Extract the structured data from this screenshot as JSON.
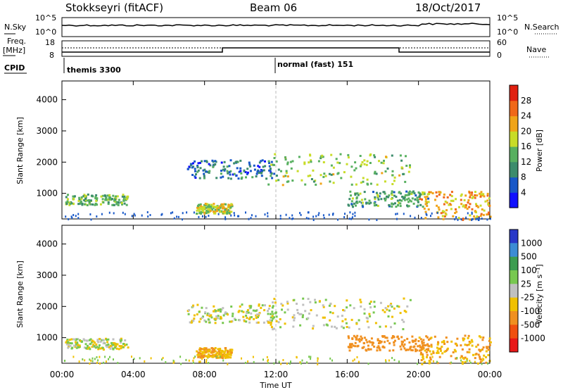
{
  "header": {
    "radar": "Stokkseyri (fitACF)",
    "beam": "Beam 06",
    "date": "18/Oct/2017"
  },
  "params": {
    "nsky_label": "N.Sky",
    "nsky_ticks": [
      "10^5",
      "10^0"
    ],
    "nsearch_label": "N.Search",
    "nsearch_ticks": [
      "10^5",
      "10^0"
    ],
    "freq_label_1": "Freq.",
    "freq_label_2": "[MHz]",
    "freq_ticks": [
      "18",
      "8"
    ],
    "nave_label": "Nave",
    "nave_ticks": [
      "60",
      "0"
    ],
    "cpid_label": "CPID",
    "cpid_entries": [
      {
        "name": "themis 3300",
        "time": "00:00"
      },
      {
        "name": "normal (fast) 151",
        "time": "12:00"
      }
    ]
  },
  "chart_data": [
    {
      "type": "heatmap",
      "title": "",
      "quantity": "Power",
      "ylabel": "Slant Range [km]",
      "ylim": [
        180,
        4600
      ],
      "yticks": [
        "1000",
        "2000",
        "3000",
        "4000"
      ],
      "colorbar_label": "Power [dB]",
      "colorbar_ticks": [
        "4",
        "8",
        "12",
        "16",
        "20",
        "24",
        "28"
      ],
      "colorbar_colors": [
        "#1010ff",
        "#1858c8",
        "#3c8c6c",
        "#58b060",
        "#c8dc28",
        "#f0a418",
        "#f06818",
        "#e02010"
      ],
      "features": [
        {
          "t_start": "00:10",
          "t_end": "03:40",
          "range_km": [
            650,
            1000
          ],
          "level_db": 12
        },
        {
          "t_start": "07:30",
          "t_end": "09:30",
          "range_km": [
            380,
            700
          ],
          "level_db": 16
        },
        {
          "t_start": "07:00",
          "t_end": "12:00",
          "range_km": [
            1500,
            2100
          ],
          "level_db": 6
        },
        {
          "t_start": "11:30",
          "t_end": "19:30",
          "range_km": [
            1300,
            2300
          ],
          "level_db": 14
        },
        {
          "t_start": "16:00",
          "t_end": "20:30",
          "range_km": [
            600,
            1100
          ],
          "level_db": 10
        },
        {
          "t_start": "20:00",
          "t_end": "24:00",
          "range_km": [
            180,
            1100
          ],
          "level_db": 20
        }
      ]
    },
    {
      "type": "heatmap",
      "title": "",
      "quantity": "Velocity",
      "ylabel": "Slant Range [km]",
      "ylim": [
        180,
        4600
      ],
      "yticks": [
        "1000",
        "2000",
        "3000",
        "4000"
      ],
      "xlabel": "Time UT",
      "xticks": [
        "00:00",
        "04:00",
        "08:00",
        "12:00",
        "16:00",
        "20:00",
        "00:00"
      ],
      "colorbar_label": "Velocity [m s⁻¹]",
      "colorbar_ticks": [
        "1000",
        "500",
        "100",
        "25",
        "-25",
        "-100",
        "-500",
        "-1000"
      ],
      "colorbar_colors": [
        "#2838c8",
        "#3c8cd4",
        "#3c9c50",
        "#78c850",
        "#c0c0c0",
        "#f0c000",
        "#f09020",
        "#f05010",
        "#e81818"
      ],
      "features": [
        {
          "t_start": "00:10",
          "t_end": "03:40",
          "range_km": [
            650,
            1000
          ],
          "velocity": 0
        },
        {
          "t_start": "07:30",
          "t_end": "09:30",
          "range_km": [
            380,
            700
          ],
          "velocity": -100
        },
        {
          "t_start": "07:00",
          "t_end": "12:00",
          "range_km": [
            1500,
            2100
          ],
          "velocity": 0
        },
        {
          "t_start": "11:30",
          "t_end": "19:30",
          "range_km": [
            1300,
            2300
          ],
          "velocity": 0
        },
        {
          "t_start": "16:00",
          "t_end": "20:30",
          "range_km": [
            600,
            1100
          ],
          "velocity": -300
        },
        {
          "t_start": "20:00",
          "t_end": "24:00",
          "range_km": [
            180,
            1100
          ],
          "velocity": -100
        }
      ]
    }
  ]
}
